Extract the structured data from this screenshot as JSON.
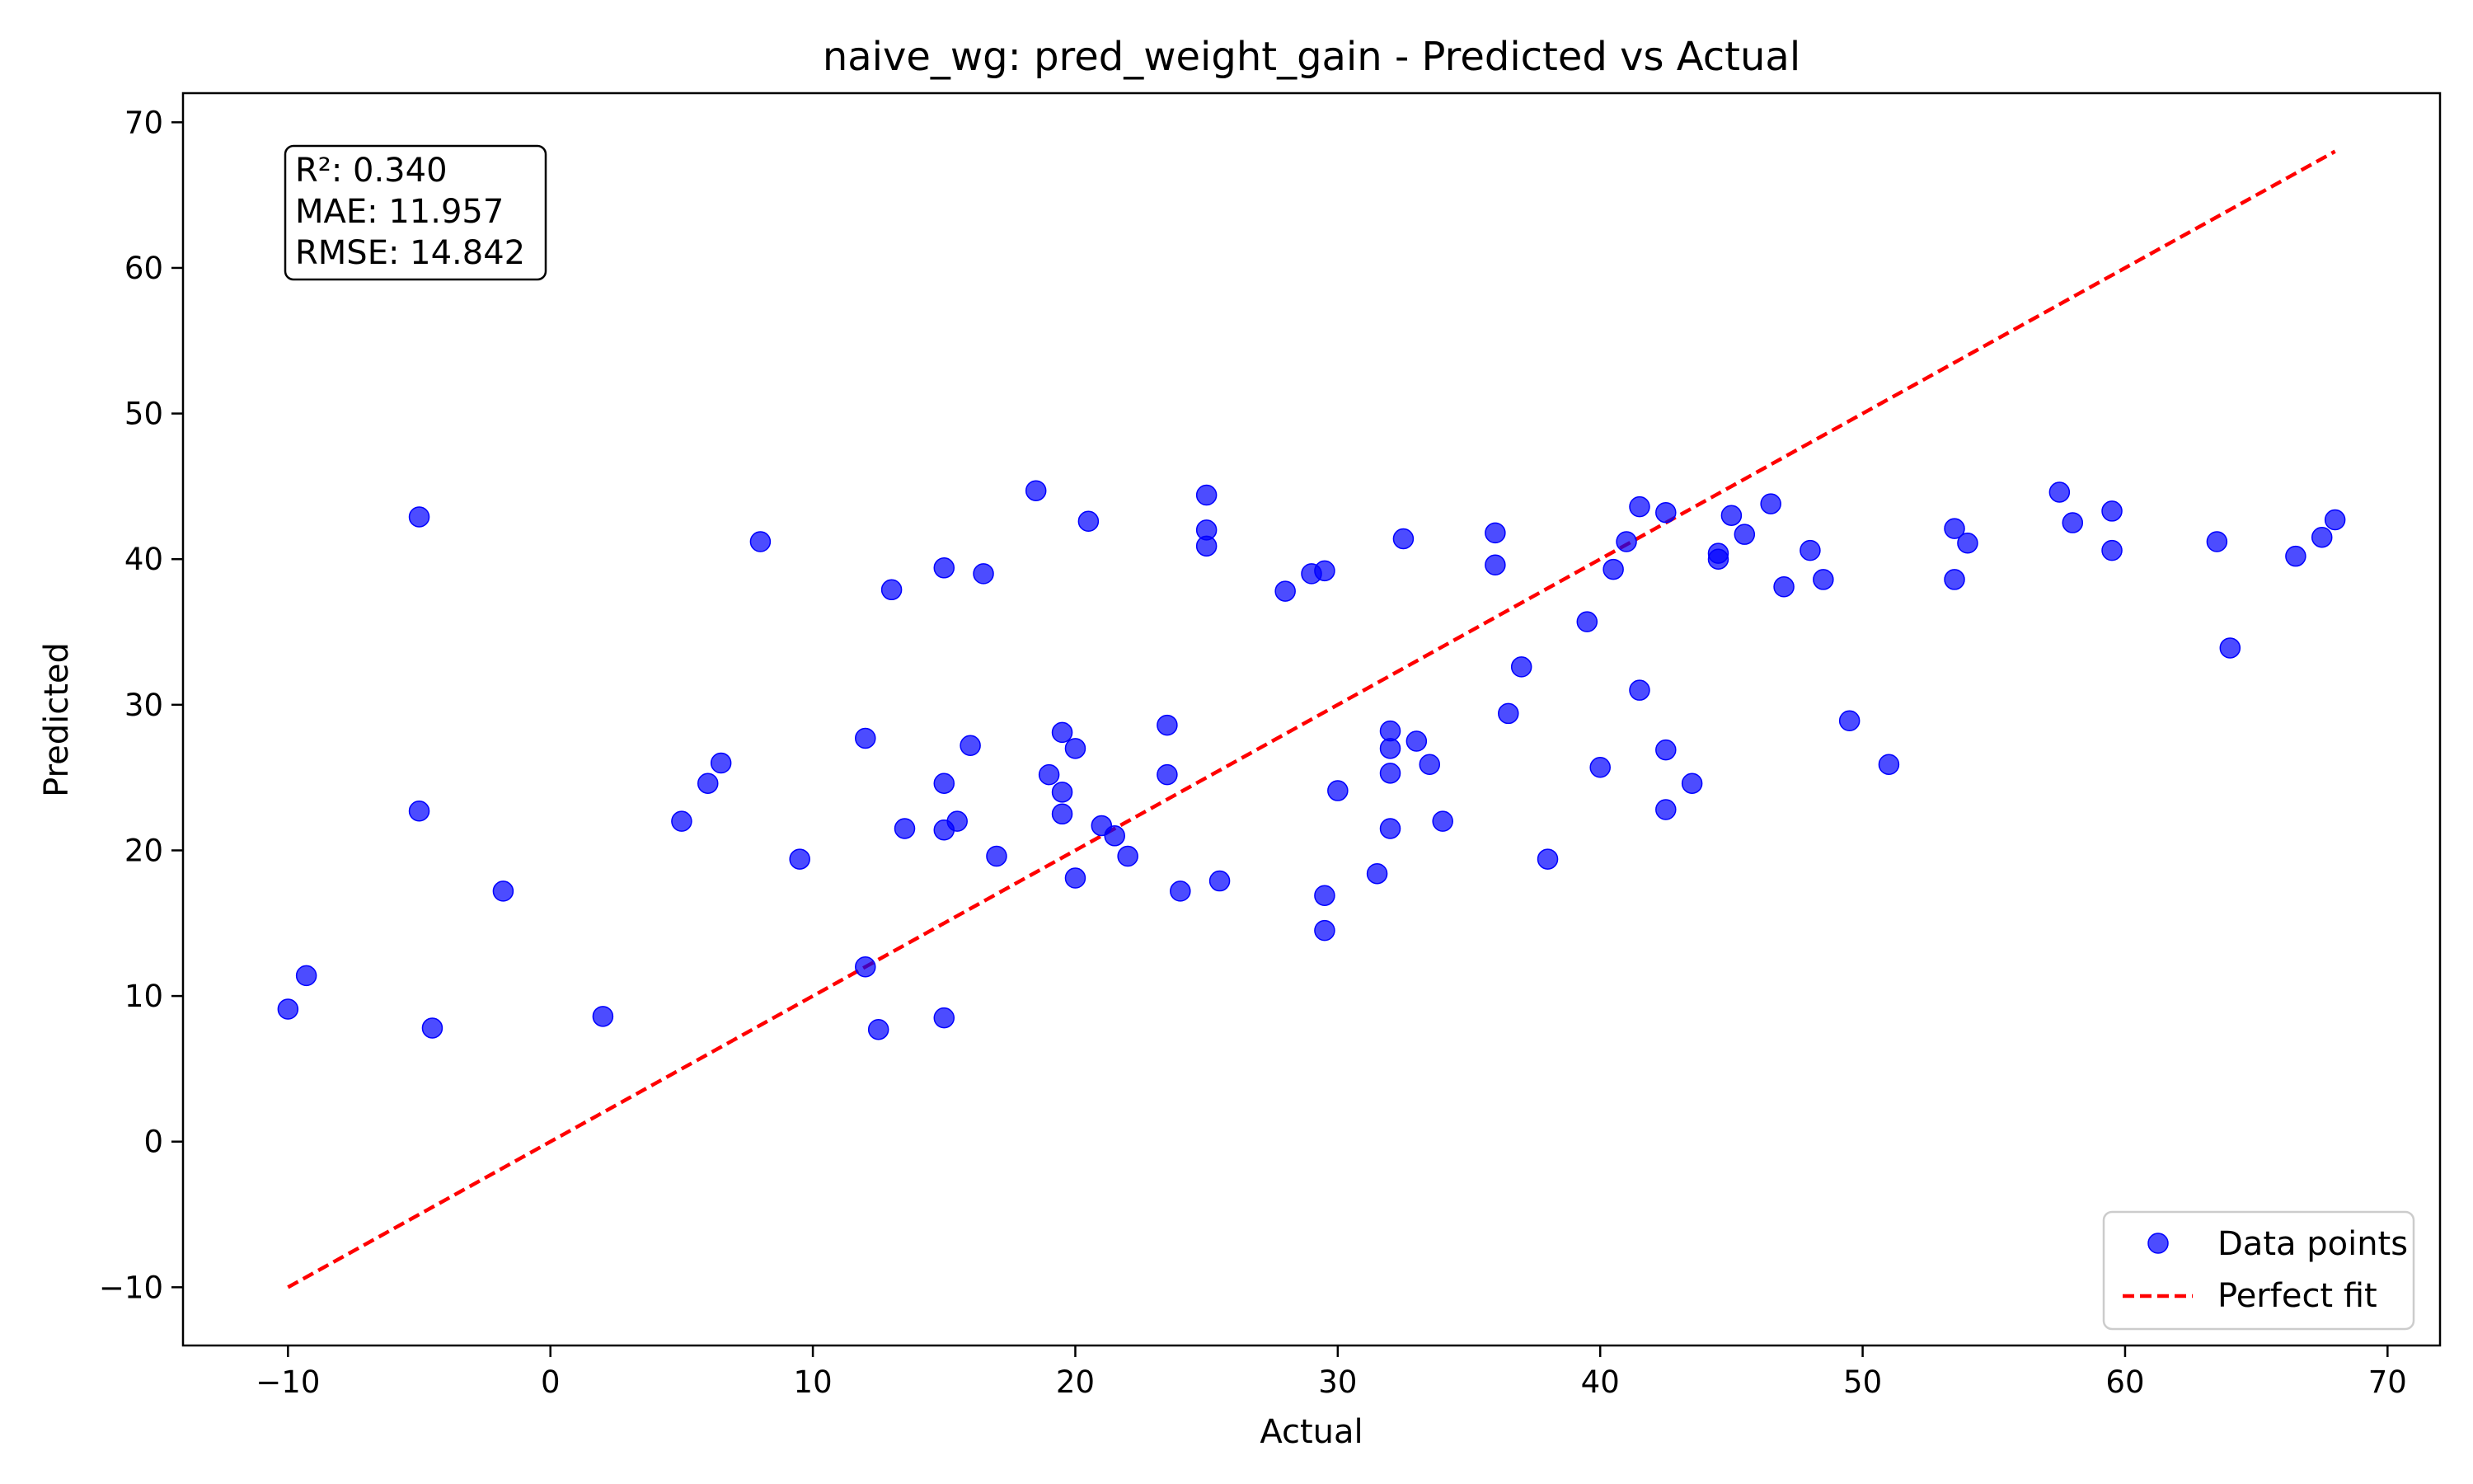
{
  "chart_data": {
    "type": "scatter",
    "title": "naive_wg: pred_weight_gain - Predicted vs Actual",
    "xlabel": "Actual",
    "ylabel": "Predicted",
    "xlim": [
      -14,
      72
    ],
    "ylim": [
      -14,
      72
    ],
    "xticks": [
      -10,
      0,
      10,
      20,
      30,
      40,
      50,
      60,
      70
    ],
    "yticks": [
      -10,
      0,
      10,
      20,
      30,
      40,
      50,
      60,
      70
    ],
    "xtick_labels": [
      "−10",
      "0",
      "10",
      "20",
      "30",
      "40",
      "50",
      "60",
      "70"
    ],
    "ytick_labels": [
      "−10",
      "0",
      "10",
      "20",
      "30",
      "40",
      "50",
      "60",
      "70"
    ],
    "grid": false,
    "legend_position": "lower-right",
    "stats": {
      "r2_line": "R²: 0.340",
      "mae_line": "MAE: 11.957",
      "rmse_line": "RMSE: 14.842"
    },
    "series": [
      {
        "name": "Data points",
        "type": "scatter",
        "color": "#0000ff",
        "points": [
          [
            -10,
            9.1
          ],
          [
            -9.3,
            11.4
          ],
          [
            -5,
            42.9
          ],
          [
            -5,
            22.7
          ],
          [
            -4.5,
            7.8
          ],
          [
            -1.8,
            17.2
          ],
          [
            2,
            8.6
          ],
          [
            5,
            22
          ],
          [
            6,
            24.6
          ],
          [
            6.5,
            26
          ],
          [
            8,
            41.2
          ],
          [
            9.5,
            19.4
          ],
          [
            12,
            27.7
          ],
          [
            12,
            12
          ],
          [
            12.5,
            7.7
          ],
          [
            13,
            37.9
          ],
          [
            13.5,
            21.5
          ],
          [
            15,
            39.4
          ],
          [
            15,
            24.6
          ],
          [
            15,
            21.4
          ],
          [
            15,
            8.5
          ],
          [
            15.5,
            22
          ],
          [
            16,
            27.2
          ],
          [
            16.5,
            39
          ],
          [
            17,
            19.6
          ],
          [
            18.5,
            44.7
          ],
          [
            19,
            25.2
          ],
          [
            19.5,
            28.1
          ],
          [
            19.5,
            24
          ],
          [
            19.5,
            22.5
          ],
          [
            20,
            27
          ],
          [
            20,
            18.1
          ],
          [
            20.5,
            42.6
          ],
          [
            21,
            21.7
          ],
          [
            21.5,
            21
          ],
          [
            22,
            19.6
          ],
          [
            23.5,
            28.6
          ],
          [
            23.5,
            25.2
          ],
          [
            24,
            17.2
          ],
          [
            25,
            44.4
          ],
          [
            25,
            42
          ],
          [
            25,
            40.9
          ],
          [
            25.5,
            17.9
          ],
          [
            28,
            37.8
          ],
          [
            29,
            39
          ],
          [
            29.5,
            39.2
          ],
          [
            29.5,
            16.9
          ],
          [
            29.5,
            14.5
          ],
          [
            30,
            24.1
          ],
          [
            31.5,
            18.4
          ],
          [
            32,
            28.2
          ],
          [
            32,
            27
          ],
          [
            32,
            25.3
          ],
          [
            32,
            21.5
          ],
          [
            32.5,
            41.4
          ],
          [
            33,
            27.5
          ],
          [
            33.5,
            25.9
          ],
          [
            34,
            22
          ],
          [
            36,
            41.8
          ],
          [
            36,
            39.6
          ],
          [
            36.5,
            29.4
          ],
          [
            37,
            32.6
          ],
          [
            38,
            19.4
          ],
          [
            39.5,
            35.7
          ],
          [
            40,
            25.7
          ],
          [
            40.5,
            39.3
          ],
          [
            41,
            41.2
          ],
          [
            41.5,
            43.6
          ],
          [
            41.5,
            31
          ],
          [
            42.5,
            43.2
          ],
          [
            42.5,
            26.9
          ],
          [
            42.5,
            22.8
          ],
          [
            43.5,
            24.6
          ],
          [
            44.5,
            40.4
          ],
          [
            44.5,
            40
          ],
          [
            45,
            43
          ],
          [
            45.5,
            41.7
          ],
          [
            46.5,
            43.8
          ],
          [
            47,
            38.1
          ],
          [
            48,
            40.6
          ],
          [
            48.5,
            38.6
          ],
          [
            49.5,
            28.9
          ],
          [
            51,
            25.9
          ],
          [
            53.5,
            42.1
          ],
          [
            53.5,
            38.6
          ],
          [
            54,
            41.1
          ],
          [
            57.5,
            44.6
          ],
          [
            58,
            42.5
          ],
          [
            59.5,
            43.3
          ],
          [
            59.5,
            40.6
          ],
          [
            63.5,
            41.2
          ],
          [
            64,
            33.9
          ],
          [
            66.5,
            40.2
          ],
          [
            67.5,
            41.5
          ],
          [
            68,
            42.7
          ]
        ]
      },
      {
        "name": "Perfect fit",
        "type": "line",
        "color": "#ff0000",
        "dash": "dashed",
        "points": [
          [
            -10,
            -10
          ],
          [
            68,
            68
          ]
        ]
      }
    ]
  }
}
